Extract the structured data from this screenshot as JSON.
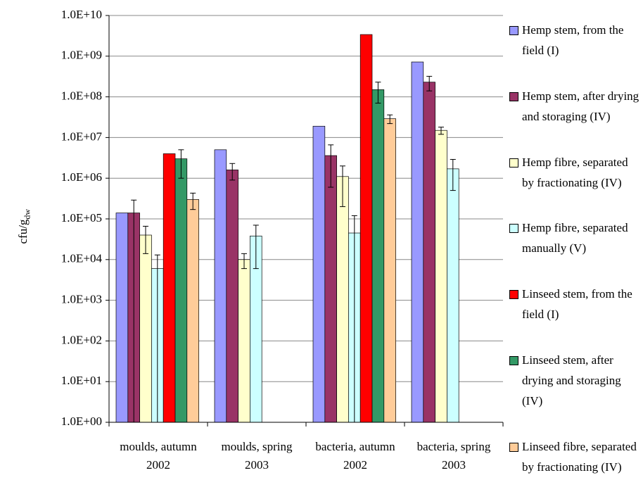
{
  "chart_data": {
    "type": "bar",
    "y_label": "cfu/g",
    "y_label_sub": "dw",
    "log_scale": true,
    "grid": true,
    "legend_position": "right",
    "categories": [
      "moulds, autumn 2002",
      "moulds, spring 2003",
      "bacteria, autumn 2002",
      "bacteria, spring 2003"
    ],
    "ylim": [
      1,
      10000000000
    ],
    "yticks": [
      {
        "value": 1,
        "label": "1.0E+00"
      },
      {
        "value": 10,
        "label": "1.0E+01"
      },
      {
        "value": 100,
        "label": "1.0E+02"
      },
      {
        "value": 1000,
        "label": "1.0E+03"
      },
      {
        "value": 10000,
        "label": "1.0E+04"
      },
      {
        "value": 100000,
        "label": "1.0E+05"
      },
      {
        "value": 1000000,
        "label": "1.0E+06"
      },
      {
        "value": 10000000,
        "label": "1.0E+07"
      },
      {
        "value": 100000000,
        "label": "1.0E+08"
      },
      {
        "value": 1000000000,
        "label": "1.0E+09"
      },
      {
        "value": 10000000000,
        "label": "1.0E+10"
      }
    ],
    "series": [
      {
        "name": "Hemp stem, from the field (I)",
        "color": "#9999ff",
        "values": [
          140000,
          5000000,
          19000000,
          720000000
        ],
        "errors": [
          null,
          null,
          null,
          null
        ]
      },
      {
        "name": "Hemp stem, after drying and storaging (IV)",
        "color": "#993366",
        "values": [
          140000,
          1600000,
          3600000,
          230000000
        ],
        "errors": [
          150000,
          700000,
          3000000,
          90000000
        ]
      },
      {
        "name": "Hemp fibre, separated by fractionating (IV)",
        "color": "#ffffcc",
        "values": [
          40000,
          10000,
          1100000,
          15000000
        ],
        "errors": [
          26000,
          4000,
          900000,
          3000000
        ]
      },
      {
        "name": "Hemp fibre, separated manually (V)",
        "color": "#ccffff",
        "values": [
          6000,
          38000,
          45000,
          1700000
        ],
        "errors": [
          7000,
          32000,
          75000,
          1200000
        ]
      },
      {
        "name": "Linseed stem, from the field (I)",
        "color": "#ff0000",
        "values": [
          4000000,
          null,
          3400000000,
          null
        ],
        "errors": [
          null,
          null,
          null,
          null
        ]
      },
      {
        "name": "Linseed stem, after drying and storaging (IV)",
        "color": "#339966",
        "values": [
          3000000,
          null,
          150000000,
          null
        ],
        "errors": [
          2000000,
          null,
          80000000,
          null
        ]
      },
      {
        "name": "Linseed fibre, separated by fractionating (IV)",
        "color": "#ffcc99",
        "values": [
          300000,
          null,
          29000000,
          null
        ],
        "errors": [
          130000,
          null,
          7000000,
          null
        ]
      }
    ]
  }
}
